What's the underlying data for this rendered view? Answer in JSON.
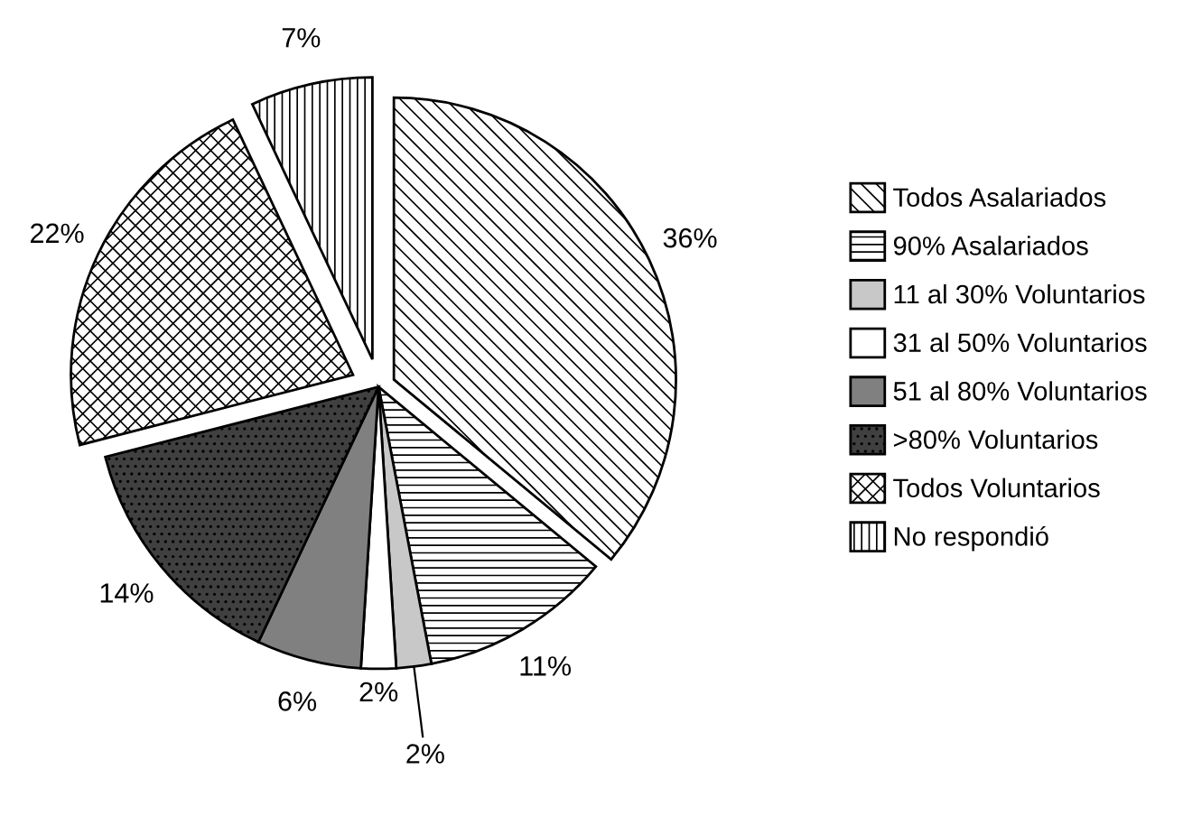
{
  "chart_data": {
    "type": "pie",
    "categories": [
      "Todos Asalariados",
      "90% Asalariados",
      "11 al 30% Voluntarios",
      "31 al 50% Voluntarios",
      "51 al 80% Voluntarios",
      ">80% Voluntarios",
      "Todos Voluntarios",
      "No respondió"
    ],
    "values": [
      36,
      11,
      2,
      2,
      6,
      14,
      22,
      7
    ],
    "colors": [
      "#ffffff",
      "#ffffff",
      "#c8c8c8",
      "#ffffff",
      "#808080",
      "#404040",
      "#ffffff",
      "#ffffff"
    ],
    "value_labels": [
      "36%",
      "11%",
      "2%",
      "2%",
      "6%",
      "14%",
      "22%",
      "7%"
    ],
    "legend": "right"
  }
}
